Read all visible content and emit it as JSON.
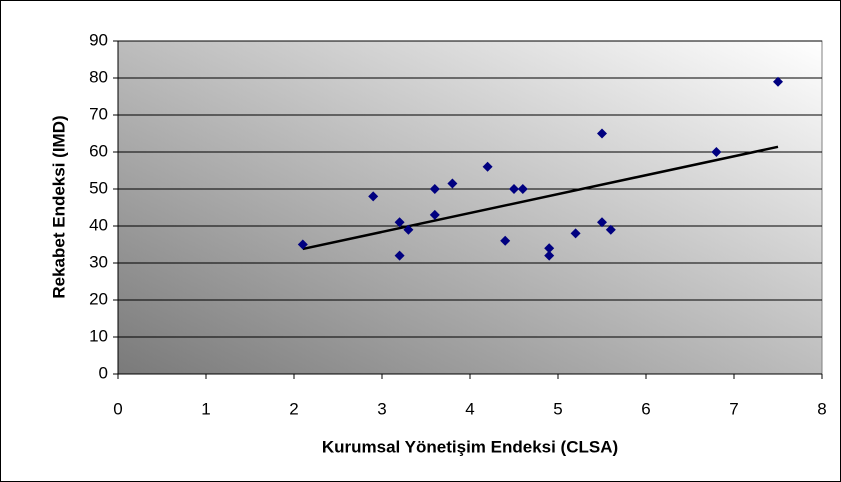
{
  "chart_data": {
    "type": "scatter",
    "xlabel": "Kurumsal Yönetişim Endeksi (CLSA)",
    "ylabel": "Rekabet Endeksi (IMD)",
    "series": [
      {
        "color": "#000080",
        "x": [
          2.1,
          2.9,
          3.2,
          3.2,
          3.3,
          3.6,
          3.6,
          3.8,
          4.2,
          4.4,
          4.5,
          4.6,
          4.9,
          4.9,
          5.2,
          5.5,
          5.5,
          5.6,
          6.8,
          7.5
        ],
        "values": [
          35,
          48,
          41,
          32,
          39,
          50,
          43,
          51.5,
          56,
          36,
          50,
          50,
          34,
          32,
          38,
          65,
          41,
          39,
          60,
          79
        ]
      }
    ],
    "trendline": {
      "color": "#000000",
      "x": [
        2.1,
        7.5
      ],
      "values": [
        33.8,
        61.4
      ]
    },
    "xlim": [
      0,
      8
    ],
    "xticks": [
      0,
      1,
      2,
      3,
      4,
      5,
      6,
      7,
      8
    ],
    "ylim": [
      0,
      90
    ],
    "yticks": [
      0,
      10,
      20,
      30,
      40,
      50,
      60,
      70,
      80,
      90
    ],
    "grid": true
  }
}
